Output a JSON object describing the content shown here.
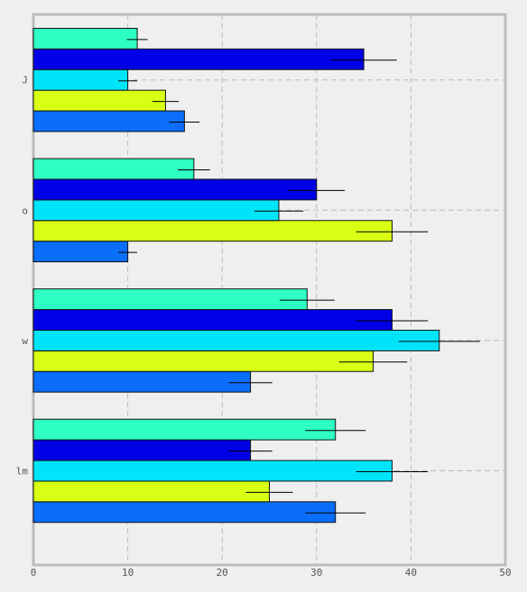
{
  "chart_data": {
    "type": "bar",
    "orientation": "horizontal",
    "categories": [
      "lm",
      "w",
      "o",
      "J"
    ],
    "series": [
      {
        "color": "#0a6efa",
        "values": [
          32,
          23,
          10,
          16
        ],
        "errors": [
          3.2,
          2.3,
          1.0,
          1.6
        ]
      },
      {
        "color": "#d8ff14",
        "values": [
          25,
          36,
          38,
          14
        ],
        "errors": [
          2.5,
          3.6,
          3.8,
          1.4
        ]
      },
      {
        "color": "#00e4fa",
        "values": [
          38,
          43,
          26,
          10
        ],
        "errors": [
          3.8,
          4.3,
          2.6,
          1.0
        ]
      },
      {
        "color": "#0000e6",
        "values": [
          23,
          38,
          30,
          35
        ],
        "errors": [
          2.3,
          3.8,
          3.0,
          3.5
        ]
      },
      {
        "color": "#2effc4",
        "values": [
          32,
          29,
          17,
          11
        ],
        "errors": [
          3.2,
          2.9,
          1.7,
          1.1
        ]
      }
    ],
    "xlim": [
      0,
      50
    ],
    "xticks": [
      "0",
      "10",
      "20",
      "30",
      "40",
      "50"
    ],
    "grid": true,
    "title": "",
    "xlabel": "",
    "ylabel": ""
  },
  "colors": {
    "background": "#efefef",
    "frame": "#bcbcbc",
    "grid": "#bbbbbb"
  }
}
